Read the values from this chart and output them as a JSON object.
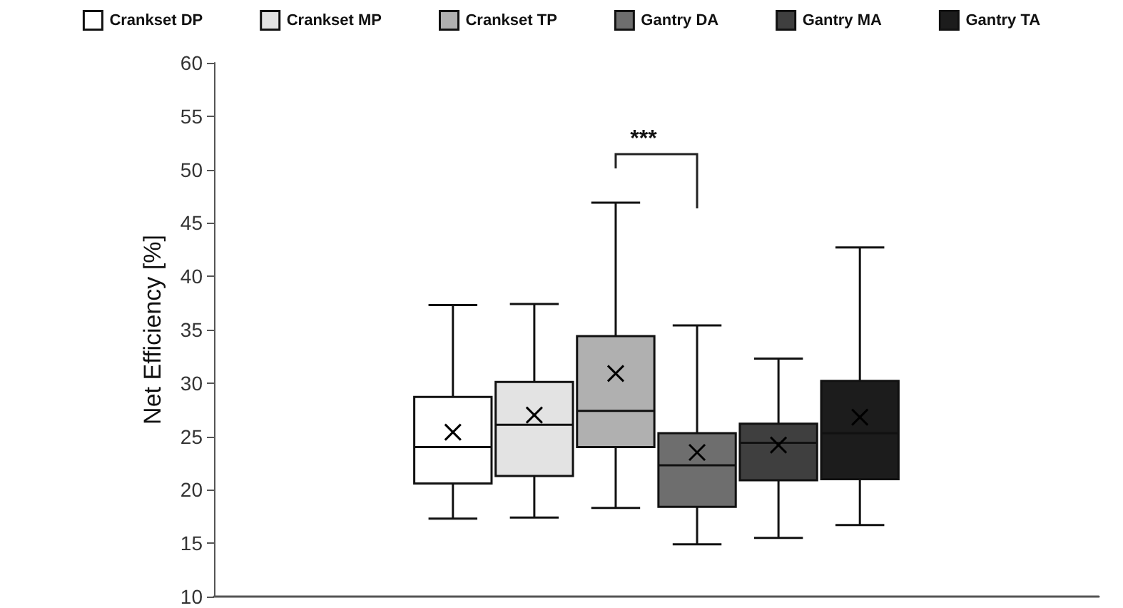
{
  "chart_data": {
    "type": "box",
    "ylabel": "Net Efficiency [%]",
    "categories": [
      null
    ],
    "ylim": [
      10,
      60
    ],
    "yticks": [
      10,
      15,
      20,
      25,
      30,
      35,
      40,
      45,
      50,
      55,
      60
    ],
    "grid": false,
    "legend": "top",
    "marker": "cross",
    "annotations": [
      "***"
    ],
    "series": [
      {
        "name": "Crankset DP",
        "color": "#ffffff",
        "boxes": [
          {
            "low": 17.3,
            "q1": 20.6,
            "median": 24,
            "q3": 28.7,
            "high": 37.3,
            "mean": 25.4
          }
        ]
      },
      {
        "name": "Crankset MP",
        "color": "#e3e3e3",
        "boxes": [
          {
            "low": 17.4,
            "q1": 21.3,
            "median": 26.1,
            "q3": 30.1,
            "high": 37.4,
            "mean": 27
          }
        ]
      },
      {
        "name": "Crankset TP",
        "color": "#b0b0b0",
        "boxes": [
          {
            "low": 18.3,
            "q1": 24,
            "median": 27.4,
            "q3": 34.4,
            "high": 46.9,
            "mean": 30.9
          }
        ]
      },
      {
        "name": "Gantry DA",
        "color": "#6e6e6e",
        "boxes": [
          {
            "low": 14.9,
            "q1": 18.4,
            "median": 22.3,
            "q3": 25.3,
            "high": 35.4,
            "mean": 23.5
          }
        ]
      },
      {
        "name": "Gantry MA",
        "color": "#3f3f3f",
        "boxes": [
          {
            "low": 15.5,
            "q1": 20.9,
            "median": 24.4,
            "q3": 26.2,
            "high": 32.3,
            "mean": 24.2
          }
        ]
      },
      {
        "name": "Gantry TA",
        "color": "#1c1c1c",
        "boxes": [
          {
            "low": 16.7,
            "q1": 21,
            "median": 25.3,
            "q3": 30.2,
            "high": 42.7,
            "mean": 26.8
          }
        ]
      }
    ]
  }
}
